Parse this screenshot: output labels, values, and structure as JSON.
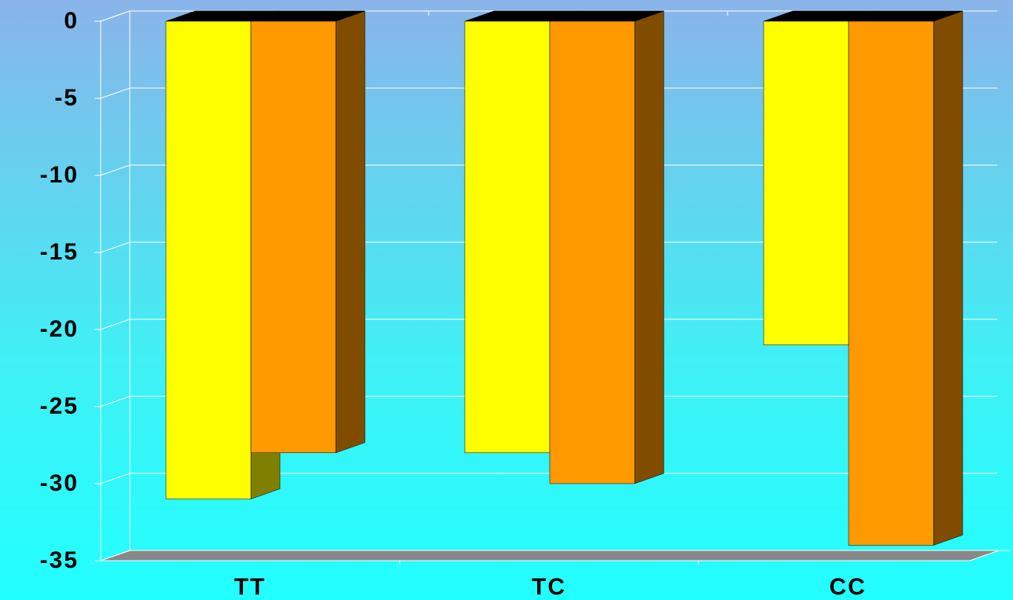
{
  "chart_data": {
    "type": "bar3d",
    "categories": [
      "TT",
      "TC",
      "CC"
    ],
    "series": [
      {
        "color": "#ffff00",
        "values": [
          -31,
          -28,
          -21
        ]
      },
      {
        "color": "#ff9900",
        "values": [
          -28,
          -30,
          -34
        ]
      }
    ],
    "ylim": [
      -35,
      0
    ],
    "yticks": [
      0,
      -5,
      -10,
      -15,
      -20,
      -25,
      -30,
      -35
    ],
    "grid": true
  }
}
